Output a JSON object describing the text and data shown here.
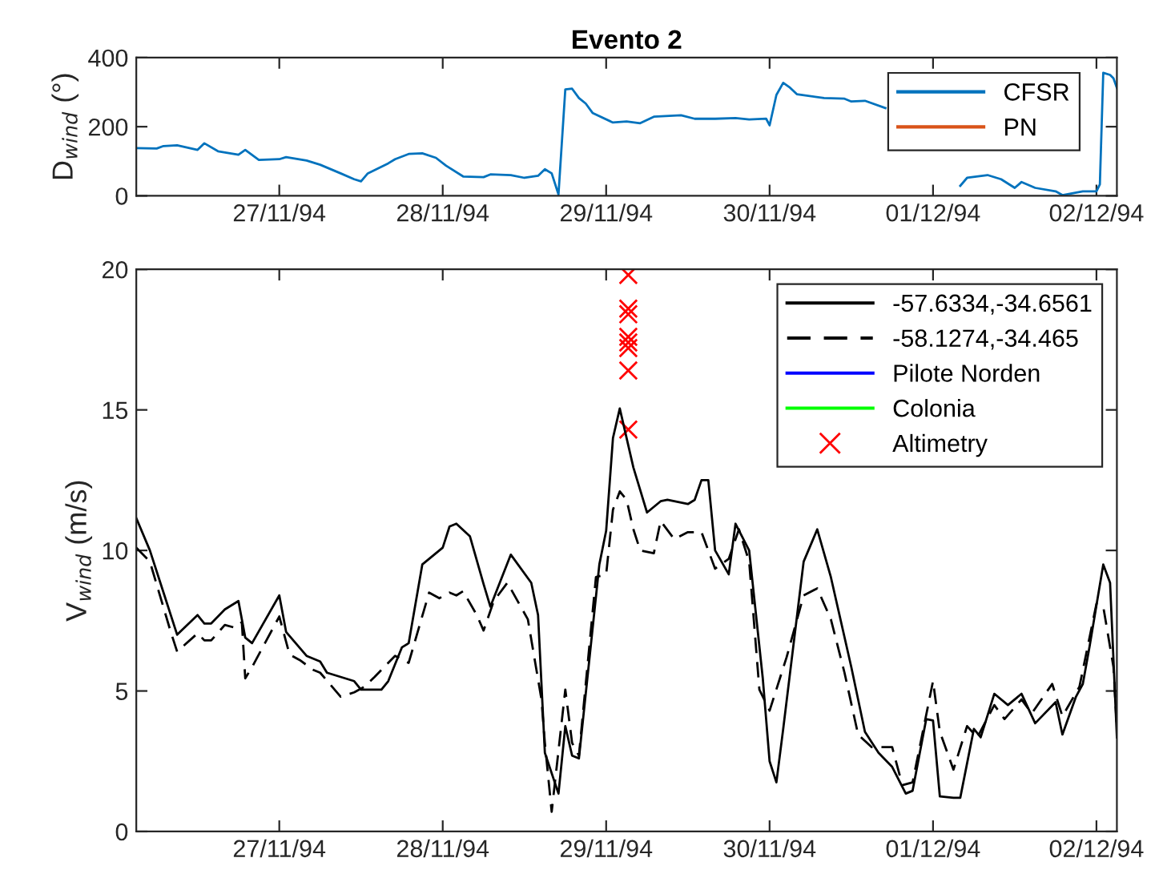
{
  "chart_data": [
    {
      "type": "line",
      "title": "Evento 2",
      "ylabel": "D$_{wind}$ (°)",
      "xlim": [
        "1994-11-26T03:00",
        "1994-12-02T03:00"
      ],
      "ylim": [
        0,
        400
      ],
      "yticks": [
        0,
        200,
        400
      ],
      "xticks": [
        {
          "value": "1994-11-27",
          "label": "27/11/94"
        },
        {
          "value": "1994-11-28",
          "label": "28/11/94"
        },
        {
          "value": "1994-11-29",
          "label": "29/11/94"
        },
        {
          "value": "1994-11-30",
          "label": "30/11/94"
        },
        {
          "value": "1994-12-01",
          "label": "01/12/94"
        },
        {
          "value": "1994-12-02",
          "label": "02/12/94"
        }
      ],
      "grid": false,
      "legend": "top right",
      "marker": "none",
      "line_style": "solid",
      "series": [
        {
          "name": "CFSR",
          "color": "#0072bd",
          "x": [
            "1994-11-26T03:00",
            "1994-11-26T06:00",
            "1994-11-26T07:00",
            "1994-11-26T09:00",
            "1994-11-26T12:00",
            "1994-11-26T13:00",
            "1994-11-26T15:00",
            "1994-11-26T18:00",
            "1994-11-26T19:00",
            "1994-11-26T21:00",
            "1994-11-27T00:00",
            "1994-11-27T01:00",
            "1994-11-27T04:00",
            "1994-11-27T06:00",
            "1994-11-27T09:00",
            "1994-11-27T11:00",
            "1994-11-27T12:00",
            "1994-11-27T13:00",
            "1994-11-27T16:00",
            "1994-11-27T17:00",
            "1994-11-27T19:00",
            "1994-11-27T21:00",
            "1994-11-27T23:00",
            "1994-11-28T00:30",
            "1994-11-28T03:00",
            "1994-11-28T06:00",
            "1994-11-28T07:00",
            "1994-11-28T10:00",
            "1994-11-28T12:00",
            "1994-11-28T14:00",
            "1994-11-28T15:00",
            "1994-11-28T16:00",
            "1994-11-28T17:00",
            "1994-11-28T18:00",
            "1994-11-28T19:00",
            "1994-11-28T20:00",
            "1994-11-28T21:00",
            "1994-11-28T22:00",
            "1994-11-29T01:00",
            "1994-11-29T03:00",
            "1994-11-29T05:00",
            "1994-11-29T07:00",
            "1994-11-29T11:00",
            "1994-11-29T13:00",
            "1994-11-29T16:00",
            "1994-11-29T19:00",
            "1994-11-29T21:00",
            "1994-11-29T23:30",
            "1994-11-30T00:00",
            "1994-11-30T01:00",
            "1994-11-30T02:00",
            "1994-11-30T03:00",
            "1994-11-30T04:00",
            "1994-11-30T08:00",
            "1994-11-30T11:00",
            "1994-11-30T12:00",
            "1994-11-30T14:00",
            "1994-11-30T17:00",
            "1994-11-30T22:00",
            "1994-12-01T03:00",
            "1994-12-01T04:00",
            "1994-12-01T05:00",
            "1994-12-01T08:00",
            "1994-12-01T10:00",
            "1994-12-01T12:00",
            "1994-12-01T13:00",
            "1994-12-01T15:00",
            "1994-12-01T18:00",
            "1994-12-01T19:00",
            "1994-12-01T22:00",
            "1994-12-02T00:00",
            "1994-12-02T00:30",
            "1994-12-02T01:00",
            "1994-12-02T02:00",
            "1994-12-02T02:30",
            "1994-12-02T03:00"
          ],
          "values": [
            138,
            137,
            144,
            146,
            133,
            152,
            129,
            119,
            133,
            104,
            106,
            112,
            102,
            90,
            65,
            48,
            42,
            65,
            94,
            106,
            121,
            123,
            110,
            87,
            56,
            54,
            62,
            60,
            52,
            58,
            77,
            65,
            4,
            308,
            310,
            283,
            267,
            240,
            212,
            215,
            210,
            229,
            233,
            223,
            223,
            225,
            221,
            223,
            204,
            292,
            327,
            313,
            294,
            283,
            281,
            273,
            275,
            254,
            null,
            null,
            29,
            52,
            60,
            48,
            23,
            40,
            23,
            13,
            2,
            13,
            13,
            33,
            356,
            350,
            340,
            312
          ]
        },
        {
          "name": "PN",
          "color": "#d95319"
        }
      ]
    },
    {
      "type": "line",
      "ylabel": "V$_{wind}$ (m/s)",
      "xlim": [
        "1994-11-26T03:00",
        "1994-12-02T03:00"
      ],
      "ylim": [
        0,
        20
      ],
      "yticks": [
        0,
        5,
        10,
        15,
        20
      ],
      "xticks": [
        {
          "value": "1994-11-27",
          "label": "27/11/94"
        },
        {
          "value": "1994-11-28",
          "label": "28/11/94"
        },
        {
          "value": "1994-11-29",
          "label": "29/11/94"
        },
        {
          "value": "1994-11-30",
          "label": "30/11/94"
        },
        {
          "value": "1994-12-01",
          "label": "01/12/94"
        },
        {
          "value": "1994-12-02",
          "label": "02/12/94"
        }
      ],
      "grid": false,
      "legend": "top right",
      "series": [
        {
          "name": "-57.6334,-34.6561",
          "color": "#000000",
          "line_style": "solid",
          "marker": "none",
          "x": [
            "1994-11-26T03:00",
            "1994-11-26T05:00",
            "1994-11-26T07:00",
            "1994-11-26T09:00",
            "1994-11-26T12:00",
            "1994-11-26T13:00",
            "1994-11-26T14:00",
            "1994-11-26T16:00",
            "1994-11-26T18:00",
            "1994-11-26T19:00",
            "1994-11-26T20:00",
            "1994-11-27T00:00",
            "1994-11-27T01:00",
            "1994-11-27T04:00",
            "1994-11-27T06:00",
            "1994-11-27T07:00",
            "1994-11-27T11:00",
            "1994-11-27T12:00",
            "1994-11-27T15:00",
            "1994-11-27T16:00",
            "1994-11-27T18:00",
            "1994-11-27T19:00",
            "1994-11-27T21:00",
            "1994-11-28T00:00",
            "1994-11-28T01:00",
            "1994-11-28T02:00",
            "1994-11-28T04:00",
            "1994-11-28T06:00",
            "1994-11-28T07:00",
            "1994-11-28T10:00",
            "1994-11-28T13:00",
            "1994-11-28T14:00",
            "1994-11-28T15:00",
            "1994-11-28T17:00",
            "1994-11-28T18:00",
            "1994-11-28T19:00",
            "1994-11-28T20:00",
            "1994-11-28T23:00",
            "1994-11-29T00:00",
            "1994-11-29T01:00",
            "1994-11-29T02:00",
            "1994-11-29T04:00",
            "1994-11-29T06:00",
            "1994-11-29T08:00",
            "1994-11-29T09:00",
            "1994-11-29T12:00",
            "1994-11-29T13:00",
            "1994-11-29T14:00",
            "1994-11-29T15:00",
            "1994-11-29T16:00",
            "1994-11-29T18:00",
            "1994-11-29T19:00",
            "1994-11-29T21:00",
            "1994-11-29T23:00",
            "1994-11-30T00:00",
            "1994-11-30T01:00",
            "1994-11-30T02:00",
            "1994-11-30T05:00",
            "1994-11-30T07:00",
            "1994-11-30T09:00",
            "1994-11-30T12:00",
            "1994-11-30T14:00",
            "1994-11-30T16:00",
            "1994-11-30T18:00",
            "1994-11-30T20:00",
            "1994-11-30T21:00",
            "1994-11-30T23:00",
            "1994-12-01T00:00",
            "1994-12-01T01:00",
            "1994-12-01T03:00",
            "1994-12-01T04:00",
            "1994-12-01T06:00",
            "1994-12-01T07:00",
            "1994-12-01T09:00",
            "1994-12-01T11:00",
            "1994-12-01T13:00",
            "1994-12-01T15:00",
            "1994-12-01T18:00",
            "1994-12-01T19:00",
            "1994-12-01T21:00",
            "1994-12-01T22:00",
            "1994-12-01T23:00",
            "1994-12-02T01:00",
            "1994-12-02T02:00",
            "1994-12-02T03:00"
          ],
          "values": [
            11.15,
            10.0,
            8.5,
            7.0,
            7.7,
            7.4,
            7.4,
            7.9,
            8.2,
            6.9,
            6.7,
            8.4,
            7.1,
            6.25,
            6.05,
            5.65,
            5.35,
            5.05,
            5.05,
            5.35,
            6.55,
            6.7,
            9.5,
            10.1,
            10.85,
            10.95,
            10.5,
            8.8,
            8.0,
            9.85,
            8.85,
            7.7,
            2.8,
            1.35,
            3.75,
            2.7,
            2.6,
            9.5,
            10.7,
            14.0,
            15.05,
            12.95,
            11.35,
            11.75,
            11.8,
            11.65,
            11.8,
            12.5,
            12.5,
            10.0,
            9.15,
            10.95,
            10.0,
            5.45,
            2.5,
            1.75,
            3.65,
            9.6,
            10.75,
            9.05,
            5.85,
            3.55,
            2.8,
            2.3,
            1.35,
            1.45,
            4.0,
            3.95,
            1.25,
            1.2,
            1.2,
            3.65,
            3.35,
            4.9,
            4.5,
            4.9,
            3.85,
            4.6,
            3.45,
            4.8,
            5.25,
            6.6,
            9.5,
            8.85,
            3.35
          ]
        },
        {
          "name": "-58.1274,-34.465",
          "color": "#000000",
          "line_style": "dashed",
          "marker": "none",
          "x": [
            "1994-11-26T03:00",
            "1994-11-26T05:00",
            "1994-11-26T08:00",
            "1994-11-26T09:00",
            "1994-11-26T12:00",
            "1994-11-26T13:00",
            "1994-11-26T14:00",
            "1994-11-26T16:00",
            "1994-11-26T17:30",
            "1994-11-26T18:30",
            "1994-11-26T19:00",
            "1994-11-26T20:00",
            "1994-11-27T00:00",
            "1994-11-27T01:30",
            "1994-11-27T03:00",
            "1994-11-27T05:00",
            "1994-11-27T06:00",
            "1994-11-27T09:00",
            "1994-11-27T11:00",
            "1994-11-27T12:30",
            "1994-11-27T14:00",
            "1994-11-27T17:00",
            "1994-11-27T19:00",
            "1994-11-27T22:00",
            "1994-11-27T23:30",
            "1994-11-28T01:00",
            "1994-11-28T02:00",
            "1994-11-28T03:00",
            "1994-11-28T05:00",
            "1994-11-28T06:00",
            "1994-11-28T07:30",
            "1994-11-28T09:30",
            "1994-11-28T12:30",
            "1994-11-28T14:30",
            "1994-11-28T15:00",
            "1994-11-28T16:00",
            "1994-11-28T18:00",
            "1994-11-28T19:00",
            "1994-11-28T20:00",
            "1994-11-28T22:30",
            "1994-11-29T00:00",
            "1994-11-29T01:00",
            "1994-11-29T02:00",
            "1994-11-29T03:00",
            "1994-11-29T04:00",
            "1994-11-29T05:00",
            "1994-11-29T07:00",
            "1994-11-29T08:00",
            "1994-11-29T10:00",
            "1994-11-29T12:00",
            "1994-11-29T14:00",
            "1994-11-29T16:00",
            "1994-11-29T18:00",
            "1994-11-29T19:30",
            "1994-11-29T21:00",
            "1994-11-29T22:30",
            "1994-11-30T00:00",
            "1994-11-30T02:30",
            "1994-11-30T05:00",
            "1994-11-30T07:00",
            "1994-11-30T09:00",
            "1994-11-30T11:00",
            "1994-11-30T13:00",
            "1994-11-30T15:00",
            "1994-11-30T18:00",
            "1994-11-30T19:30",
            "1994-11-30T21:00",
            "1994-12-01T00:00",
            "1994-12-01T01:00",
            "1994-12-01T03:00",
            "1994-12-01T05:00",
            "1994-12-01T06:30",
            "1994-12-01T09:00",
            "1994-12-01T10:30",
            "1994-12-01T13:00",
            "1994-12-01T14:30",
            "1994-12-01T17:30",
            "1994-12-01T19:00",
            "1994-12-01T21:30",
            "1994-12-02T00:00",
            "1994-12-02T01:00",
            "1994-12-02T02:30",
            "1994-12-02T03:00"
          ],
          "values": [
            10.1,
            9.6,
            7.15,
            6.4,
            7.05,
            6.8,
            6.8,
            7.35,
            7.25,
            7.45,
            5.45,
            5.85,
            7.65,
            6.3,
            6.1,
            5.75,
            5.65,
            4.8,
            4.95,
            5.15,
            5.5,
            6.25,
            6.0,
            8.5,
            8.3,
            8.5,
            8.4,
            8.55,
            7.7,
            7.15,
            8.2,
            8.85,
            7.55,
            4.7,
            3.15,
            0.7,
            5.05,
            3.15,
            2.7,
            9.05,
            9.15,
            11.45,
            12.1,
            11.8,
            10.75,
            10.0,
            9.9,
            11.05,
            10.4,
            10.65,
            10.65,
            9.35,
            9.7,
            10.75,
            9.6,
            5.05,
            4.3,
            6.2,
            8.4,
            8.65,
            7.55,
            5.65,
            3.45,
            3.0,
            3.0,
            1.65,
            1.75,
            5.35,
            3.55,
            2.2,
            3.75,
            3.35,
            4.5,
            4.0,
            4.7,
            4.2,
            5.25,
            4.1,
            5.15,
            8.1,
            8.0,
            5.85,
            3.65
          ]
        },
        {
          "name": "Pilote Norden",
          "color": "#0000ff",
          "line_style": "solid",
          "marker": "none"
        },
        {
          "name": "Colonia",
          "color": "#00ff00",
          "line_style": "solid",
          "marker": "none"
        },
        {
          "name": "Altimetry",
          "type": "scatter",
          "color": "#ff0000",
          "marker": "cross",
          "x": [
            "1994-11-29T03:15",
            "1994-11-29T03:15",
            "1994-11-29T03:15",
            "1994-11-29T03:15",
            "1994-11-29T03:15",
            "1994-11-29T03:15",
            "1994-11-29T03:15",
            "1994-11-29T03:15"
          ],
          "values": [
            19.8,
            18.6,
            18.4,
            17.6,
            17.4,
            17.2,
            16.4,
            14.3
          ]
        }
      ]
    }
  ]
}
